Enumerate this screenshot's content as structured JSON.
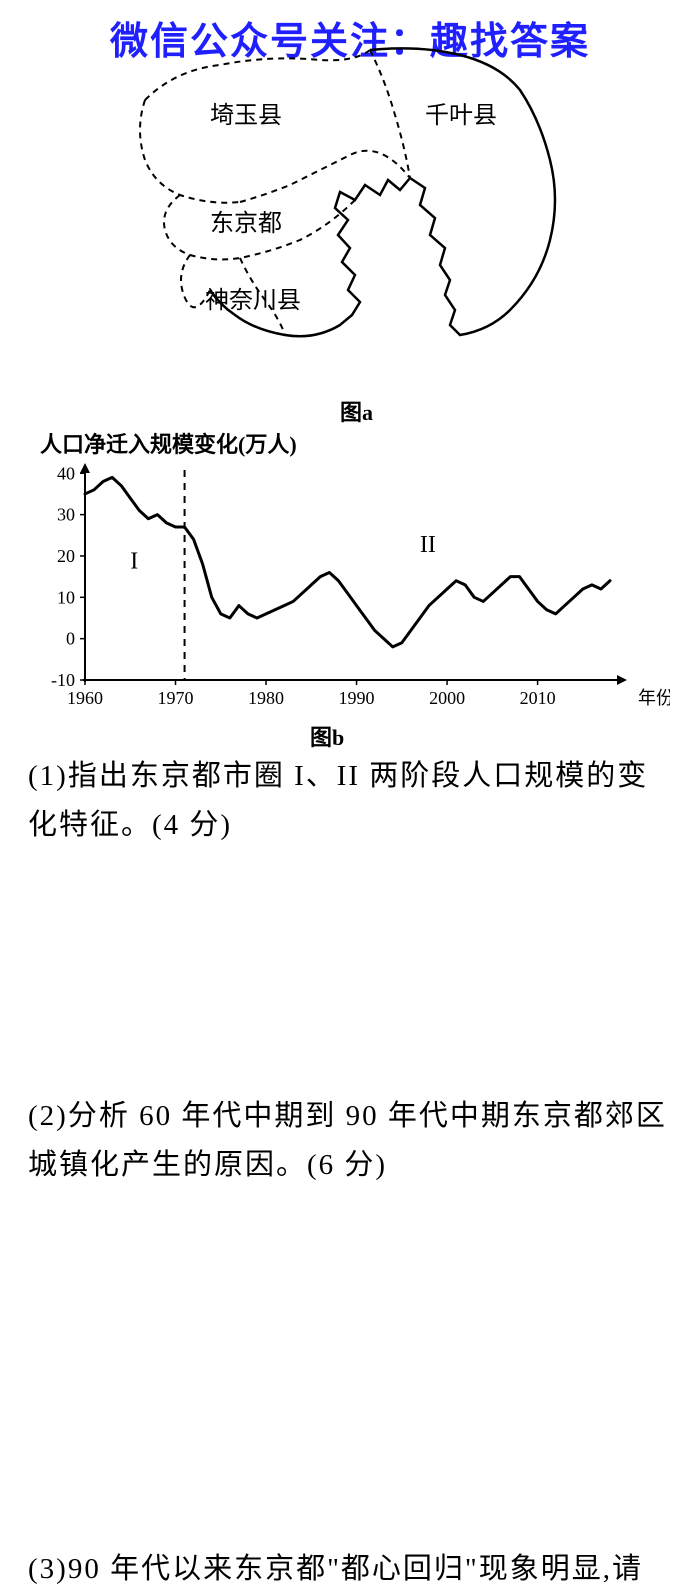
{
  "watermark": "微信公众号关注：趣找答案",
  "map": {
    "labels": {
      "saitama": "埼玉县",
      "chiba": "千叶县",
      "tokyo": "东京都",
      "kanagawa": "神奈川县"
    },
    "caption": "图a",
    "line_color": "#000000",
    "line_width": 2.5,
    "dash_pattern": "6,5"
  },
  "chart": {
    "type": "line",
    "title": "人口净迁入规模变化(万人)",
    "caption": "图b",
    "x_axis_label": "年份",
    "xlim": [
      1960,
      2018
    ],
    "ylim": [
      -10,
      42
    ],
    "xticks": [
      1960,
      1970,
      1980,
      1990,
      2000,
      2010
    ],
    "yticks": [
      -10,
      0,
      10,
      20,
      30,
      40
    ],
    "divider_x": 1971,
    "phase_labels": {
      "I": "I",
      "II": "II"
    },
    "data": [
      {
        "x": 1960,
        "y": 35
      },
      {
        "x": 1961,
        "y": 36
      },
      {
        "x": 1962,
        "y": 38
      },
      {
        "x": 1963,
        "y": 39
      },
      {
        "x": 1964,
        "y": 37
      },
      {
        "x": 1965,
        "y": 34
      },
      {
        "x": 1966,
        "y": 31
      },
      {
        "x": 1967,
        "y": 29
      },
      {
        "x": 1968,
        "y": 30
      },
      {
        "x": 1969,
        "y": 28
      },
      {
        "x": 1970,
        "y": 27
      },
      {
        "x": 1971,
        "y": 27
      },
      {
        "x": 1972,
        "y": 24
      },
      {
        "x": 1973,
        "y": 18
      },
      {
        "x": 1974,
        "y": 10
      },
      {
        "x": 1975,
        "y": 6
      },
      {
        "x": 1976,
        "y": 5
      },
      {
        "x": 1977,
        "y": 8
      },
      {
        "x": 1978,
        "y": 6
      },
      {
        "x": 1979,
        "y": 5
      },
      {
        "x": 1980,
        "y": 6
      },
      {
        "x": 1981,
        "y": 7
      },
      {
        "x": 1982,
        "y": 8
      },
      {
        "x": 1983,
        "y": 9
      },
      {
        "x": 1984,
        "y": 11
      },
      {
        "x": 1985,
        "y": 13
      },
      {
        "x": 1986,
        "y": 15
      },
      {
        "x": 1987,
        "y": 16
      },
      {
        "x": 1988,
        "y": 14
      },
      {
        "x": 1989,
        "y": 11
      },
      {
        "x": 1990,
        "y": 8
      },
      {
        "x": 1991,
        "y": 5
      },
      {
        "x": 1992,
        "y": 2
      },
      {
        "x": 1993,
        "y": 0
      },
      {
        "x": 1994,
        "y": -2
      },
      {
        "x": 1995,
        "y": -1
      },
      {
        "x": 1996,
        "y": 2
      },
      {
        "x": 1997,
        "y": 5
      },
      {
        "x": 1998,
        "y": 8
      },
      {
        "x": 1999,
        "y": 10
      },
      {
        "x": 2000,
        "y": 12
      },
      {
        "x": 2001,
        "y": 14
      },
      {
        "x": 2002,
        "y": 13
      },
      {
        "x": 2003,
        "y": 10
      },
      {
        "x": 2004,
        "y": 9
      },
      {
        "x": 2005,
        "y": 11
      },
      {
        "x": 2006,
        "y": 13
      },
      {
        "x": 2007,
        "y": 15
      },
      {
        "x": 2008,
        "y": 15
      },
      {
        "x": 2009,
        "y": 12
      },
      {
        "x": 2010,
        "y": 9
      },
      {
        "x": 2011,
        "y": 7
      },
      {
        "x": 2012,
        "y": 6
      },
      {
        "x": 2013,
        "y": 8
      },
      {
        "x": 2014,
        "y": 10
      },
      {
        "x": 2015,
        "y": 12
      },
      {
        "x": 2016,
        "y": 13
      },
      {
        "x": 2017,
        "y": 12
      },
      {
        "x": 2018,
        "y": 14
      }
    ],
    "line_color": "#000000",
    "line_width": 3,
    "axis_color": "#000000",
    "tick_fontsize": 18,
    "title_fontsize": 22,
    "background_color": "#ffffff"
  },
  "questions": {
    "q1": "(1)指出东京都市圈 I、II 两阶段人口规模的变化特征。(4 分)",
    "q2": "(2)分析 60 年代中期到 90 年代中期东京都郊区城镇化产生的原因。(6 分)",
    "q3": "(3)90 年代以来东京都\"都心回归\"现象明显,请"
  }
}
